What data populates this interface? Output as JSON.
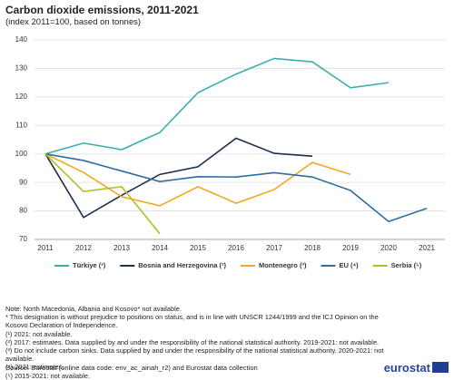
{
  "chart_data": {
    "type": "line",
    "title": "Carbon dioxide emissions, 2011-2021",
    "subtitle": "(index 2011=100, based on tonnes)",
    "categories": [
      "2011",
      "2012",
      "2013",
      "2014",
      "2015",
      "2016",
      "2017",
      "2018",
      "2019",
      "2020",
      "2021"
    ],
    "series": [
      {
        "name": "Türkiye (¹)",
        "color": "#3aafae",
        "values": [
          100,
          103.8,
          101.5,
          107.5,
          121.5,
          128,
          133.5,
          132.3,
          123.2,
          125,
          null
        ]
      },
      {
        "name": "Bosnia and Herzegovina (²)",
        "color": "#1c2f4f",
        "values": [
          100,
          77.7,
          85.5,
          92.8,
          95.5,
          105.5,
          100.2,
          99.2,
          null,
          null,
          null
        ]
      },
      {
        "name": "Montenegro  (³)",
        "color": "#f5a623",
        "values": [
          100,
          93.5,
          85,
          81.8,
          88.5,
          82.7,
          87.5,
          97,
          92.8,
          null,
          null
        ]
      },
      {
        "name": "EU (⁴)",
        "color": "#2e6da4",
        "values": [
          100,
          97.7,
          94,
          90.3,
          92,
          91.9,
          93.4,
          91.9,
          87.2,
          76.3,
          80.9
        ]
      },
      {
        "name": "Serbia (⁵)",
        "color": "#b4bc24",
        "values": [
          100,
          86.8,
          88.5,
          72,
          null,
          null,
          null,
          null,
          null,
          null,
          null
        ]
      }
    ],
    "ylim": [
      70,
      140
    ],
    "yticks": [
      70,
      80,
      90,
      100,
      110,
      120,
      130,
      140
    ],
    "grid": true,
    "legend": "bottom",
    "notes": [
      "Note: North Macedonia, Albania and Kosovo* not available.",
      "* This designation is without prejudice to positions on status, and is in line with UNSCR 1244/1999 and the ICJ Opinion on the Kosovo Declaration of Independence.",
      "(¹) 2021: not available.",
      "(²) 2017: estimates. Data supplied by and under the responsibility of the national statistical authority.  2019-2021: not available.",
      "(³) Do not include carbon sinks. Data supplied by and under the responsibility of the national statistical authority. 2020-2021: not available.",
      "(⁴) 2021: estimates.",
      "(⁵) 2015-2021: not available."
    ],
    "source": "Source: Eurostat (online data code: env_ac_ainah_r2) and Eurostat data collection",
    "logo": "eurostat"
  }
}
